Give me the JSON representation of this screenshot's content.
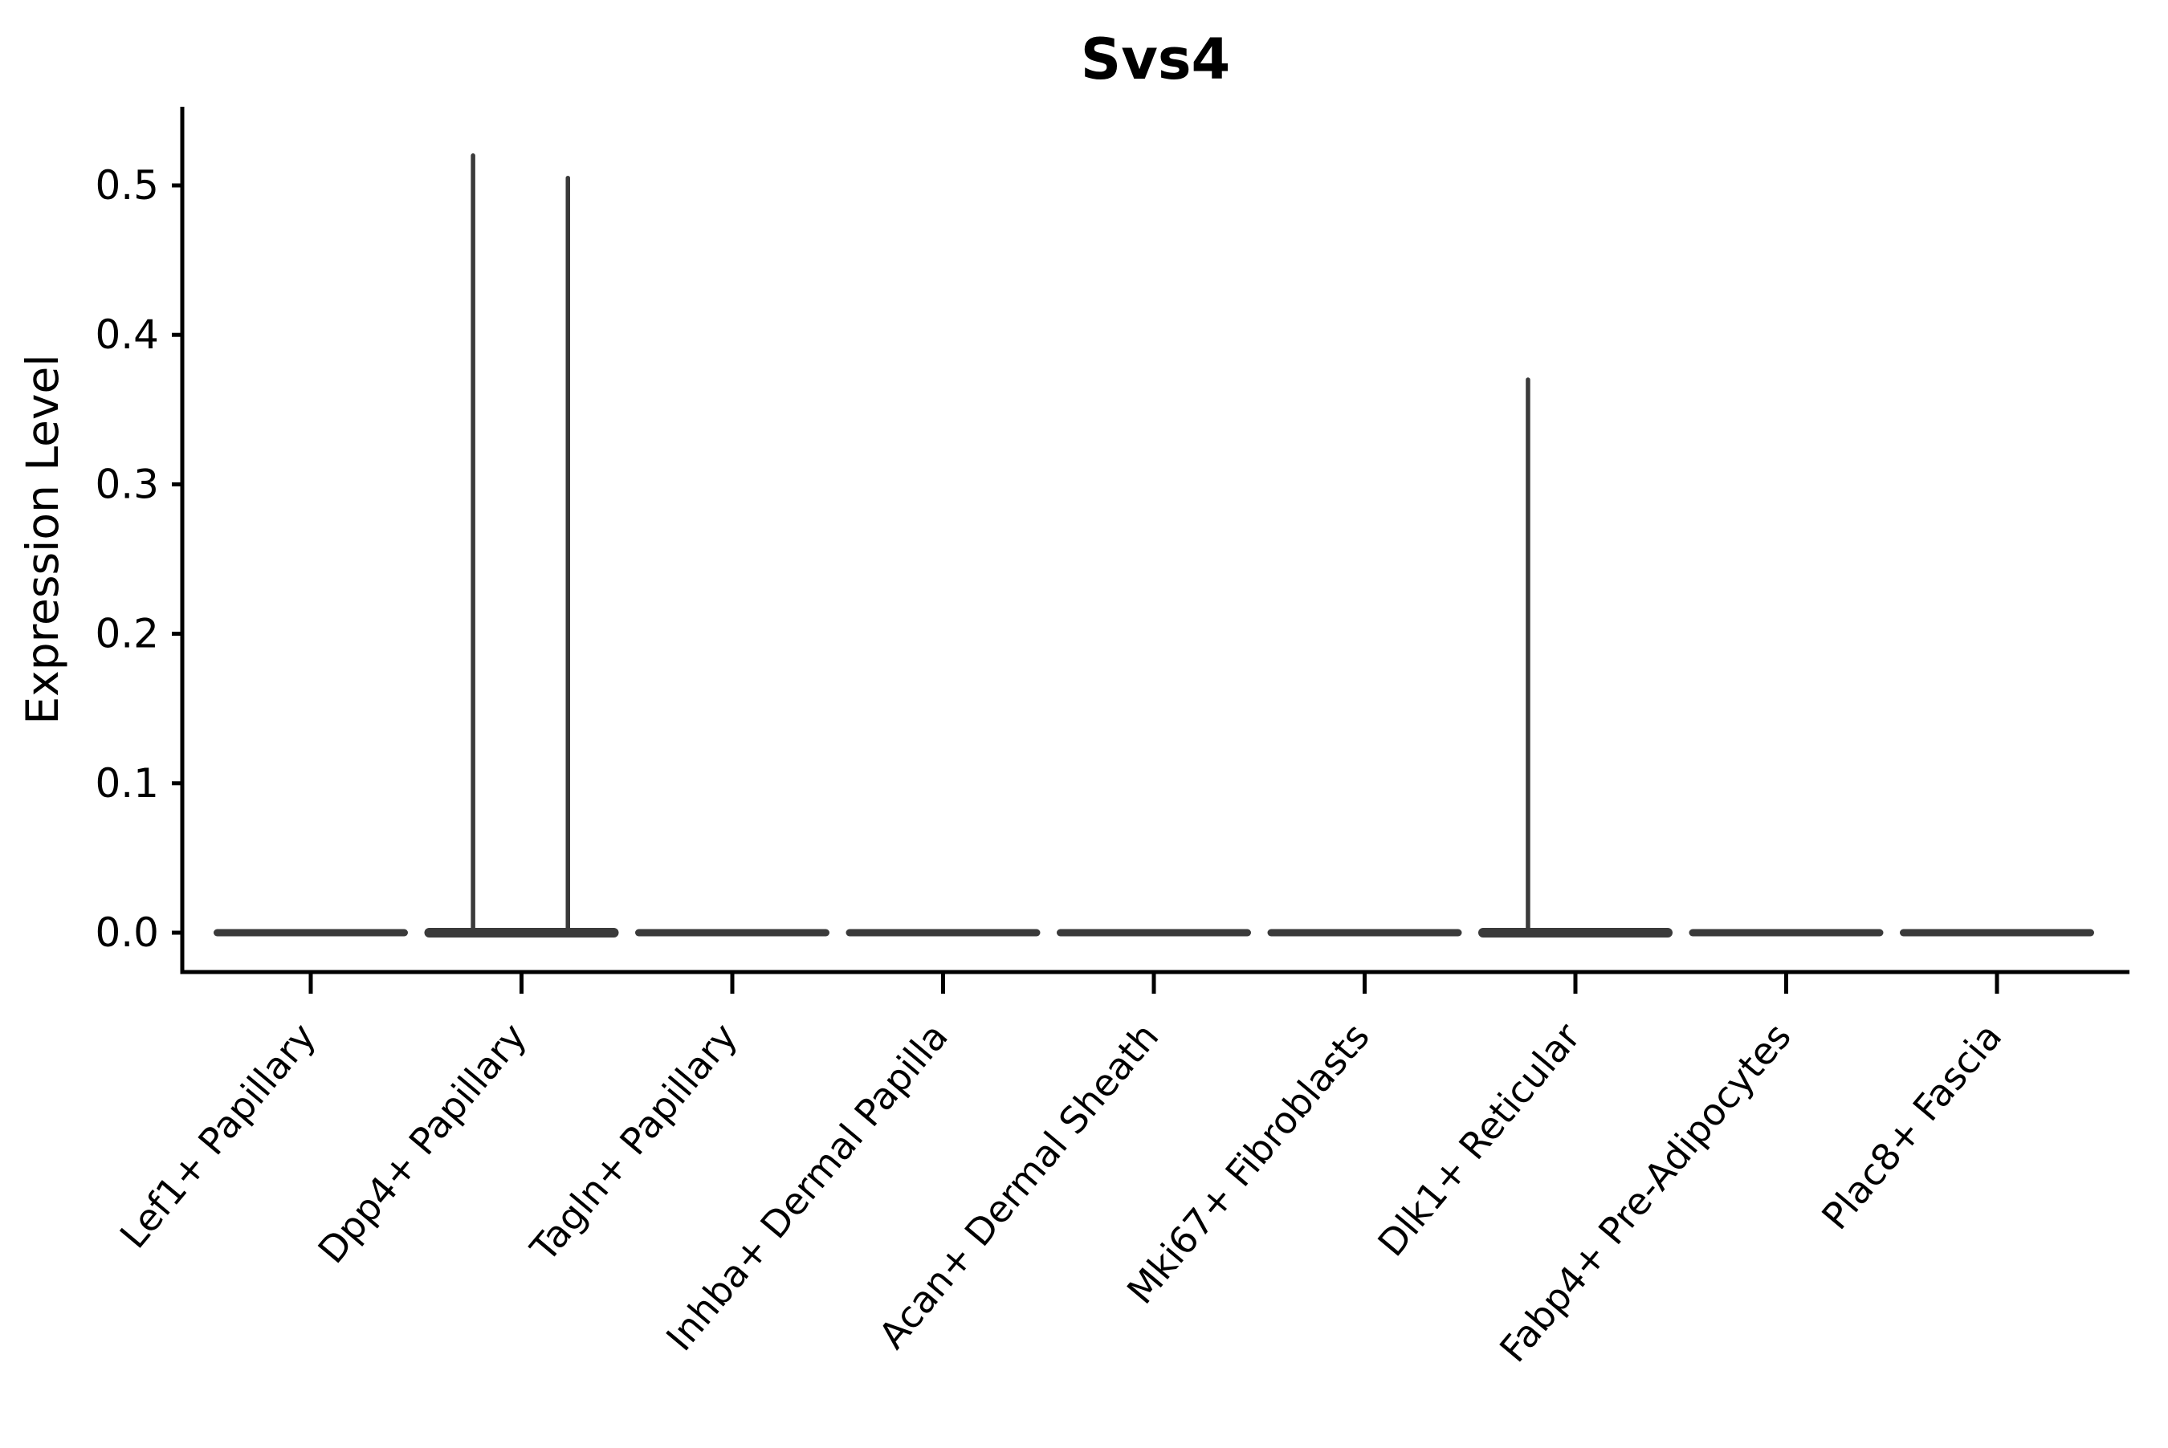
{
  "figure": {
    "title": "Svs4",
    "ylabel": "Expression Level",
    "xlabel": ""
  },
  "chart_data": {
    "type": "violin",
    "title": "Svs4",
    "xlabel": "",
    "ylabel": "Expression Level",
    "categories": [
      "Lef1+ Papillary",
      "Dpp4+ Papillary",
      "Tagln+ Papillary",
      "Inhba+ Dermal Papilla",
      "Acan+ Dermal Sheath",
      "Mki67+ Fibroblasts",
      "Dlk1+ Reticular",
      "Fabp4+ Pre-Adipocytes",
      "Plac8+ Fascia"
    ],
    "yticks": [
      0.0,
      0.1,
      0.2,
      0.3,
      0.4,
      0.5
    ],
    "ytick_labels": [
      "0.0",
      "0.1",
      "0.2",
      "0.3",
      "0.4",
      "0.5"
    ],
    "ylim": [
      -0.026,
      0.552
    ],
    "grid": false,
    "legend": null,
    "x_label_rotation_deg": 50,
    "violins": [
      {
        "category": "Lef1+ Papillary",
        "bulk_at": 0.0,
        "spikes": []
      },
      {
        "category": "Dpp4+ Papillary",
        "bulk_at": 0.0,
        "spikes": [
          {
            "offset_frac": -0.23,
            "value": 0.52
          },
          {
            "offset_frac": 0.22,
            "value": 0.505
          }
        ]
      },
      {
        "category": "Tagln+ Papillary",
        "bulk_at": 0.0,
        "spikes": []
      },
      {
        "category": "Inhba+ Dermal Papilla",
        "bulk_at": 0.0,
        "spikes": []
      },
      {
        "category": "Acan+ Dermal Sheath",
        "bulk_at": 0.0,
        "spikes": []
      },
      {
        "category": "Mki67+ Fibroblasts",
        "bulk_at": 0.0,
        "spikes": []
      },
      {
        "category": "Dlk1+ Reticular",
        "bulk_at": 0.0,
        "spikes": [
          {
            "offset_frac": -0.225,
            "value": 0.37
          }
        ]
      },
      {
        "category": "Fabp4+ Pre-Adipocytes",
        "bulk_at": 0.0,
        "spikes": []
      },
      {
        "category": "Plac8+ Fascia",
        "bulk_at": 0.0,
        "spikes": []
      }
    ],
    "colors": {
      "violin": "#3a3a3a",
      "axis": "#000000",
      "text": "#000000",
      "background": "#ffffff"
    }
  }
}
